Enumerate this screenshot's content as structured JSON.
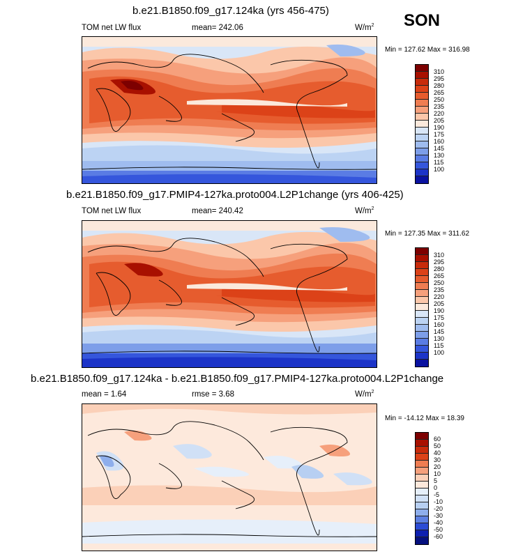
{
  "season": "SON",
  "panels": [
    {
      "title": "b.e21.B1850.f09_g17.124ka (yrs 456-475)",
      "left_label": "TOM net LW flux",
      "mean_label": "mean= 242.06",
      "units": "W/m",
      "units_sup": "2",
      "minmax": "Min = 127.62 Max = 316.98",
      "levels": [
        "310",
        "295",
        "280",
        "265",
        "250",
        "235",
        "220",
        "205",
        "190",
        "175",
        "160",
        "145",
        "130",
        "115",
        "100"
      ]
    },
    {
      "title": "b.e21.B1850.f09_g17.PMIP4-127ka.proto004.L2P1change (yrs 406-425)",
      "left_label": "TOM net LW flux",
      "mean_label": "mean= 240.42",
      "units": "W/m",
      "units_sup": "2",
      "minmax": "Min = 127.35 Max = 311.62",
      "levels": [
        "310",
        "295",
        "280",
        "265",
        "250",
        "235",
        "220",
        "205",
        "190",
        "175",
        "160",
        "145",
        "130",
        "115",
        "100"
      ]
    },
    {
      "title": "b.e21.B1850.f09_g17.124ka - b.e21.B1850.f09_g17.PMIP4-127ka.proto004.L2P1change",
      "left_label": "mean =   1.64",
      "mean_label": "rmse =   3.68",
      "units": "W/m",
      "units_sup": "2",
      "minmax": "Min = -14.12 Max =  18.39",
      "levels": [
        "60",
        "50",
        "40",
        "30",
        "20",
        "10",
        "5",
        "0",
        "-5",
        "-10",
        "-20",
        "-30",
        "-40",
        "-50",
        "-60"
      ]
    }
  ],
  "colors": {
    "abs_scale": [
      "#7d0000",
      "#a81000",
      "#c82b0b",
      "#dc4218",
      "#e65c2e",
      "#ef7d52",
      "#f6a07c",
      "#fbc7aa",
      "#fbe9dc",
      "#d9e6f7",
      "#bcd3f3",
      "#9fbcef",
      "#7d9ee9",
      "#5a7ce4",
      "#3556dc",
      "#1c34c8",
      "#0a12a0"
    ],
    "diff_scale": [
      "#7d0000",
      "#a81000",
      "#c82b0b",
      "#dc4218",
      "#ef7d52",
      "#f6a07c",
      "#fbd0b8",
      "#fde9dc",
      "#e6effa",
      "#d0e0f6",
      "#b7cff2",
      "#8eaeec",
      "#5d80e2",
      "#2c4cd5",
      "#0d1fb0",
      "#05107e"
    ]
  }
}
